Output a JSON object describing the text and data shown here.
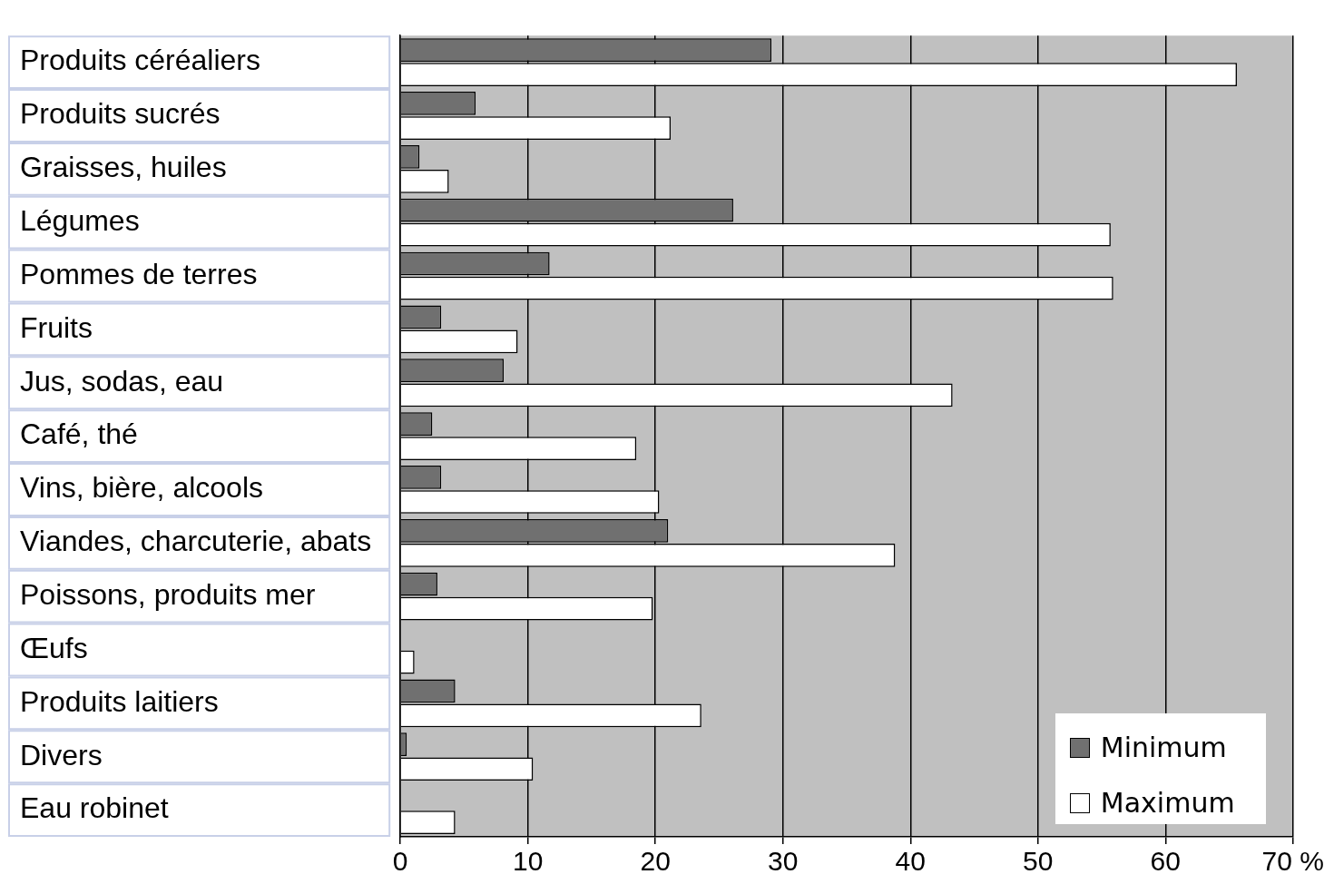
{
  "chart_data": {
    "type": "bar",
    "orientation": "horizontal",
    "categories": [
      "Produits céréaliers",
      "Produits sucrés",
      "Graisses, huiles",
      "Légumes",
      "Pommes de terres",
      "Fruits",
      "Jus, sodas, eau",
      "Café, thé",
      "Vins, bière, alcools",
      "Viandes, charcuterie, abats",
      "Poissons, produits mer",
      "Œufs",
      "Produits laitiers",
      "Divers",
      "Eau robinet"
    ],
    "series": [
      {
        "name": "Minimum",
        "color": "#707070",
        "values": [
          29.1,
          5.9,
          1.5,
          26.1,
          11.7,
          3.2,
          8.1,
          2.5,
          3.2,
          21.0,
          2.9,
          0,
          4.3,
          0.5,
          0
        ]
      },
      {
        "name": "Maximum",
        "color": "#ffffff",
        "values": [
          65.6,
          21.2,
          3.8,
          55.7,
          55.9,
          9.2,
          43.3,
          18.5,
          20.3,
          38.8,
          19.8,
          1.1,
          23.6,
          10.4,
          4.3
        ]
      }
    ],
    "xlim": [
      0,
      70
    ],
    "xticks": [
      0,
      10,
      20,
      30,
      40,
      50,
      60,
      {
        "value": 70,
        "label": "70 %"
      }
    ],
    "grid": "x",
    "legend": "bottom right"
  }
}
